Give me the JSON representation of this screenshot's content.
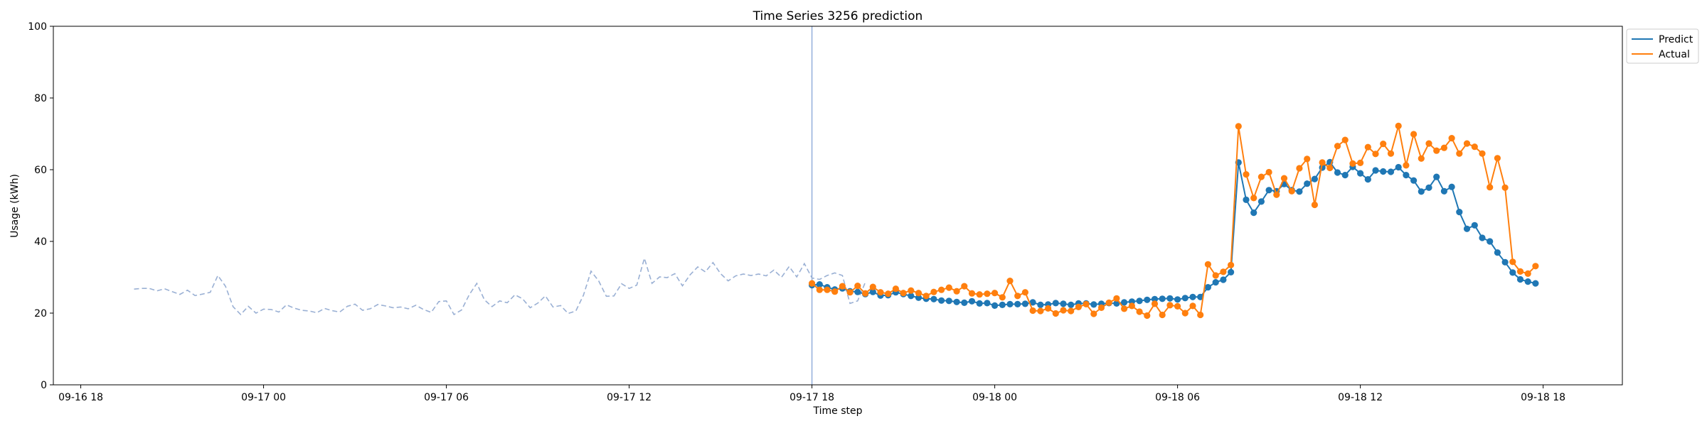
{
  "chart_data": {
    "type": "line",
    "title": "Time Series 3256 prediction",
    "xlabel": "Time step",
    "ylabel": "Usage (kWh)",
    "ylim": [
      0,
      100
    ],
    "yticks": [
      0,
      20,
      40,
      60,
      80,
      100
    ],
    "x_unit": "hours after 09-16 18:00",
    "xlim": [
      -0.9,
      50.6
    ],
    "xticks": [
      {
        "value": 0,
        "label": "09-16 18"
      },
      {
        "value": 6,
        "label": "09-17 00"
      },
      {
        "value": 12,
        "label": "09-17 06"
      },
      {
        "value": 18,
        "label": "09-17 12"
      },
      {
        "value": 24,
        "label": "09-17 18"
      },
      {
        "value": 30,
        "label": "09-18 00"
      },
      {
        "value": 36,
        "label": "09-18 06"
      },
      {
        "value": 42,
        "label": "09-18 12"
      },
      {
        "value": 48,
        "label": "09-18 18"
      }
    ],
    "grid": false,
    "legend_position": "outside-top-right",
    "forecast_start": 24,
    "history": {
      "x_start": 1.75,
      "x_step": 0.25,
      "color": "#9ab0d4",
      "values": [
        26.7,
        26.9,
        26.9,
        26.2,
        26.8,
        26.0,
        25.2,
        26.4,
        24.9,
        25.3,
        25.8,
        30.5,
        27.5,
        21.8,
        19.6,
        21.9,
        20.0,
        21.1,
        21.0,
        20.3,
        22.3,
        21.4,
        20.8,
        20.6,
        20.1,
        21.3,
        20.7,
        20.3,
        21.9,
        22.5,
        20.8,
        21.2,
        22.4,
        22.0,
        21.5,
        21.7,
        21.2,
        22.2,
        21.0,
        20.2,
        23.2,
        23.4,
        19.6,
        20.9,
        25.1,
        28.3,
        23.7,
        21.8,
        23.4,
        22.9,
        25.1,
        24.0,
        21.5,
        22.8,
        24.8,
        21.7,
        22.1,
        19.9,
        20.6,
        25.0,
        31.7,
        29.0,
        24.7,
        24.8,
        28.2,
        26.9,
        27.8,
        35.3,
        28.3,
        30.1,
        29.9,
        31.0,
        27.6,
        30.7,
        32.9,
        31.5,
        34.1,
        31.0,
        29.0,
        30.4,
        30.9,
        30.5,
        30.9,
        30.4,
        32.0,
        30.0,
        33.0,
        30.1,
        33.8,
        29.8,
        29.4,
        30.5,
        31.2,
        30.5,
        22.7,
        23.4,
        28.6
      ]
    },
    "series": [
      {
        "name": "Predict",
        "color": "#1f77b4",
        "x_start": 24,
        "x_step": 0.25,
        "values": [
          27.8,
          28.0,
          27.2,
          26.6,
          26.9,
          26.1,
          25.9,
          25.3,
          25.9,
          24.9,
          25.0,
          25.8,
          25.3,
          24.8,
          24.3,
          24.0,
          23.9,
          23.5,
          23.4,
          23.1,
          22.9,
          23.3,
          22.7,
          22.8,
          22.1,
          22.3,
          22.5,
          22.5,
          22.6,
          23.0,
          22.3,
          22.4,
          22.8,
          22.6,
          22.3,
          22.7,
          22.7,
          22.4,
          22.6,
          22.8,
          22.7,
          23.0,
          23.2,
          23.4,
          23.7,
          23.9,
          24.0,
          24.1,
          23.8,
          24.2,
          24.5,
          24.5,
          27.2,
          28.6,
          29.3,
          31.4,
          62.0,
          51.6,
          48.0,
          51.1,
          54.3,
          54.0,
          56.0,
          54.3,
          53.9,
          56.1,
          57.4,
          60.6,
          62.1,
          59.2,
          58.5,
          60.8,
          59.0,
          57.3,
          59.8,
          59.5,
          59.4,
          60.7,
          58.5,
          57.0,
          53.9,
          55.0,
          58.0,
          54.0,
          55.2,
          48.2,
          43.5,
          44.5,
          41.0,
          40.0,
          36.9,
          34.2,
          31.3,
          29.4,
          28.8,
          28.3
        ]
      },
      {
        "name": "Actual",
        "color": "#ff7f0e",
        "x_start": 24,
        "x_step": 0.25,
        "values": [
          28.3,
          26.5,
          26.5,
          26.0,
          27.5,
          25.8,
          27.6,
          25.5,
          27.3,
          25.8,
          25.4,
          26.8,
          25.6,
          26.3,
          25.6,
          24.8,
          25.9,
          26.5,
          27.1,
          26.1,
          27.5,
          25.5,
          25.2,
          25.4,
          25.6,
          24.4,
          29.0,
          24.8,
          25.8,
          20.7,
          20.6,
          21.3,
          19.9,
          20.8,
          20.6,
          21.7,
          22.5,
          19.8,
          21.5,
          22.9,
          24.1,
          21.2,
          22.0,
          20.4,
          19.3,
          22.6,
          19.5,
          22.2,
          21.9,
          20.0,
          22.0,
          19.5,
          33.6,
          30.5,
          31.5,
          33.4,
          72.1,
          58.7,
          52.1,
          58.0,
          59.3,
          53.0,
          57.6,
          54.0,
          60.4,
          63.0,
          50.2,
          62.0,
          60.5,
          66.6,
          68.3,
          61.7,
          61.9,
          66.3,
          64.4,
          67.2,
          64.5,
          72.2,
          61.2,
          69.9,
          63.1,
          67.3,
          65.3,
          66.1,
          68.8,
          64.5,
          67.3,
          66.4,
          64.5,
          55.1,
          63.2,
          55.0,
          34.3,
          31.6,
          31.0,
          33.1
        ]
      }
    ]
  }
}
